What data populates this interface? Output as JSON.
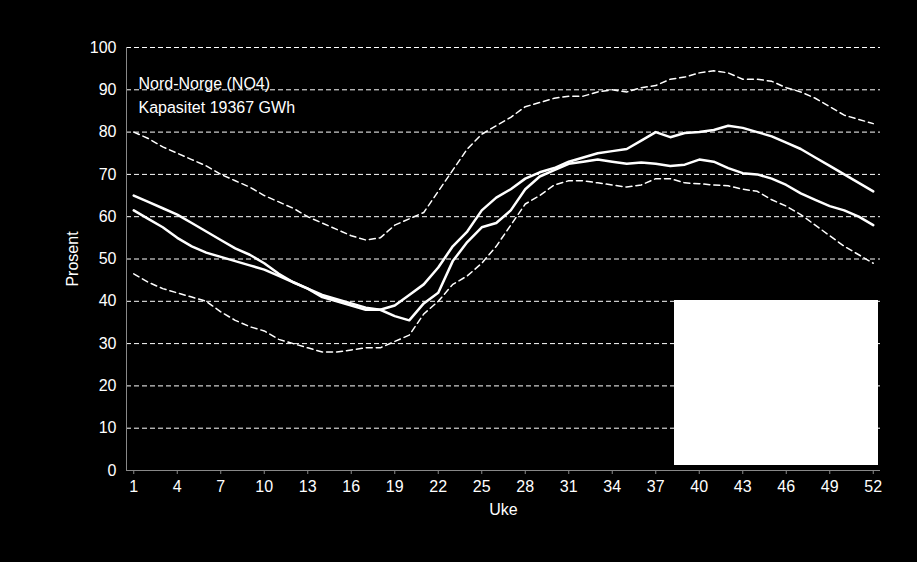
{
  "chart_data": {
    "type": "line",
    "annotation": [
      "Nord-Norge (NO4)",
      "Kapasitet 19367 GWh"
    ],
    "x_label": "Uke",
    "y_label": "Prosent",
    "x": [
      1,
      2,
      3,
      4,
      5,
      6,
      7,
      8,
      9,
      10,
      11,
      12,
      13,
      14,
      15,
      16,
      17,
      18,
      19,
      20,
      21,
      22,
      23,
      24,
      25,
      26,
      27,
      28,
      29,
      30,
      31,
      32,
      33,
      34,
      35,
      36,
      37,
      38,
      39,
      40,
      41,
      42,
      43,
      44,
      45,
      46,
      47,
      48,
      49,
      50,
      51,
      52
    ],
    "xlim": [
      0.5,
      52.5
    ],
    "xticks": [
      1,
      4,
      7,
      10,
      13,
      16,
      19,
      22,
      25,
      28,
      31,
      34,
      37,
      40,
      43,
      46,
      49,
      52
    ],
    "ylim": [
      0,
      100
    ],
    "yticks": [
      0,
      10,
      20,
      30,
      40,
      50,
      60,
      70,
      80,
      90,
      100
    ],
    "grid": true,
    "series": [
      {
        "color": "#ffffff",
        "line_style": "dashed",
        "values": [
          80,
          78.5,
          76.5,
          75,
          73.5,
          72,
          70,
          68.5,
          67,
          65,
          63.5,
          62,
          60,
          58.5,
          57,
          55.5,
          54.5,
          55,
          58,
          59.5,
          61,
          66,
          71,
          76,
          79.5,
          81.5,
          83.5,
          86,
          87,
          88,
          88.5,
          88.5,
          89.5,
          90,
          89.5,
          90.5,
          91,
          92.5,
          93,
          94,
          94.5,
          94,
          92.5,
          92.5,
          92,
          90.5,
          89.5,
          88,
          86,
          84,
          83,
          82
        ]
      },
      {
        "color": "#ffffff",
        "line_style": "solid",
        "values": [
          65,
          63.5,
          62,
          60.5,
          58.5,
          56.5,
          54.5,
          52.5,
          51,
          49,
          46.5,
          44.5,
          43,
          41.5,
          40.5,
          39.5,
          38.5,
          38,
          39,
          41.5,
          44,
          48,
          53,
          56.5,
          61.5,
          64.5,
          66.5,
          69,
          70.5,
          71.5,
          73,
          74,
          75,
          75.5,
          76,
          78,
          80,
          78.8,
          79.8,
          80,
          80.5,
          81.5,
          81,
          80,
          79,
          77.5,
          76,
          74,
          72,
          70,
          68,
          66
        ]
      },
      {
        "color": "#ffffff",
        "line_style": "solid",
        "values": [
          61.5,
          59.5,
          57.5,
          55,
          53,
          51.5,
          50.5,
          49.5,
          48.5,
          47.5,
          46,
          44.5,
          43,
          41,
          40,
          39,
          38,
          38,
          36.5,
          35.5,
          39.5,
          42,
          49.5,
          54,
          57.5,
          58.5,
          61.5,
          66.5,
          69.5,
          71,
          72.5,
          73,
          73.5,
          73,
          72.5,
          72.8,
          72.5,
          72,
          72.3,
          73.5,
          73,
          71.5,
          70.3,
          70,
          69,
          67.5,
          65.5,
          64,
          62.5,
          61.5,
          60,
          58
        ]
      },
      {
        "color": "#ffffff",
        "line_style": "dashed",
        "values": [
          46.5,
          44.5,
          43,
          42,
          41,
          40,
          37.5,
          35.5,
          34,
          33,
          31,
          30,
          29,
          28,
          28,
          28.5,
          29,
          29,
          30.5,
          32,
          37,
          40,
          44,
          46,
          49,
          53,
          58,
          63,
          65,
          67.5,
          68.5,
          68.5,
          68,
          67.5,
          67,
          67.5,
          69,
          69,
          68,
          67.8,
          67.5,
          67.3,
          66.5,
          66,
          64,
          62.5,
          60.5,
          58,
          55.5,
          53,
          51,
          49
        ]
      }
    ]
  }
}
